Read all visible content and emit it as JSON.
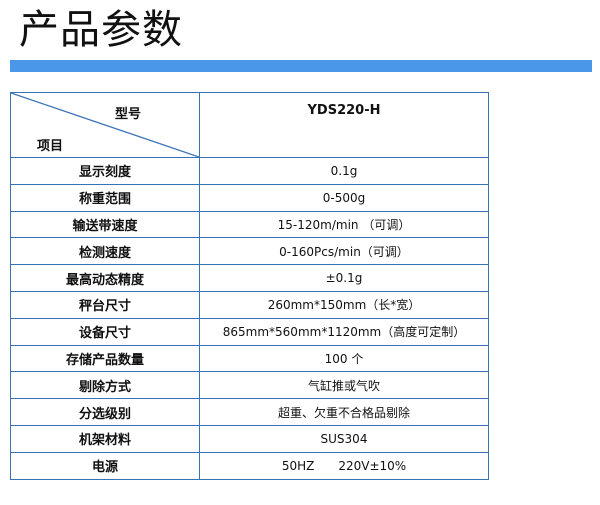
{
  "title": "产品参数",
  "colors": {
    "accent_bar": "#4a96e8",
    "table_border": "#3a72b8"
  },
  "table": {
    "header": {
      "model_label": "型号",
      "item_label": "项目",
      "model": "YDS220-H"
    },
    "rows": [
      {
        "key": "显示刻度",
        "value": "0.1g"
      },
      {
        "key": "称重范围",
        "value": "0-500g"
      },
      {
        "key": "输送带速度",
        "value": "15-120m/min （可调）"
      },
      {
        "key": "检测速度",
        "value": "0-160Pcs/min（可调）"
      },
      {
        "key": "最高动态精度",
        "value": "±0.1g"
      },
      {
        "key": "秤台尺寸",
        "value": "260mm*150mm（长*宽）"
      },
      {
        "key": "设备尺寸",
        "value": "865mm*560mm*1120mm（高度可定制）"
      },
      {
        "key": "存储产品数量",
        "value": "100 个"
      },
      {
        "key": "剔除方式",
        "value": "气缸推或气吹"
      },
      {
        "key": "分选级别",
        "value": "超重、欠重不合格品剔除"
      },
      {
        "key": "机架材料",
        "value": "SUS304"
      },
      {
        "key": "电源",
        "value": "50HZ　　220V±10%"
      }
    ]
  }
}
